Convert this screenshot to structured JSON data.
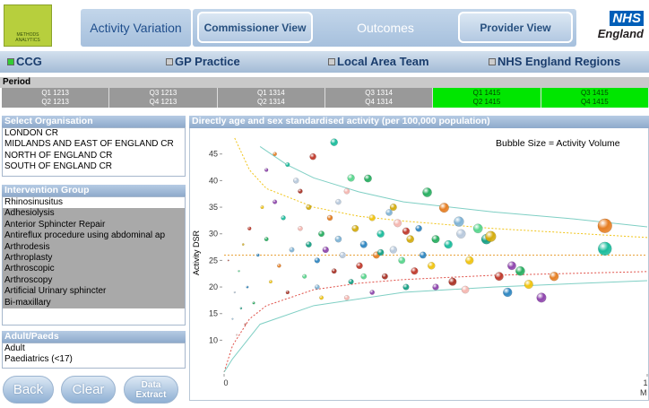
{
  "header": {
    "logo": "METHODS ANALYTICS",
    "tabs": [
      "Activity Variation",
      "Commissioner View",
      "Outcomes",
      "Provider View"
    ],
    "nhs_logo": [
      "NHS",
      "England"
    ]
  },
  "nav": {
    "items": [
      "CCG",
      "GP Practice",
      "Local Area Team",
      "NHS England Regions"
    ],
    "active": 0
  },
  "period": {
    "title": "Period",
    "cells": [
      [
        "Q1 1213",
        "Q2 1213"
      ],
      [
        "Q3 1213",
        "Q4 1213"
      ],
      [
        "Q1 1314",
        "Q2 1314"
      ],
      [
        "Q3 1314",
        "Q4 1314"
      ],
      [
        "Q1 1415",
        "Q2 1415"
      ],
      [
        "Q3 1415",
        "Q4 1415"
      ]
    ],
    "selected": [
      false,
      false,
      false,
      false,
      true,
      true
    ]
  },
  "organisation": {
    "title": "Select Organisation",
    "items": [
      "LONDON CR",
      "MIDLANDS AND EAST OF ENGLAND CR",
      "NORTH OF ENGLAND CR",
      "SOUTH OF ENGLAND CR"
    ]
  },
  "intervention": {
    "title": "Intervention Group",
    "items": [
      "Rhinosinusitus",
      "Adhesiolysis",
      "Anterior Sphincter Repair",
      "Antireflux procedure using abdominal ap",
      "Arthrodesis",
      "Arthroplasty",
      "Arthroscopic",
      "Arthroscopy",
      "Artificial Urinary sphincter",
      "Bi-maxillary"
    ],
    "selected_index": 0
  },
  "age": {
    "title": "Adult/Paeds",
    "items": [
      "Adult",
      "Paediatrics (<17)"
    ]
  },
  "buttons": [
    "Back",
    "Clear",
    "Data Extract"
  ],
  "chart_data": {
    "type": "scatter",
    "title": "Directly age and sex standardised activity (per 100,000 population)",
    "annotation": "Bubble Size = Activity Volume",
    "y_label": "Activity DSR",
    "x_unit": "M",
    "xlim": [
      0,
      1
    ],
    "xticks": [
      0,
      1
    ],
    "ylim": [
      4,
      49
    ],
    "yticks": [
      10,
      15,
      20,
      25,
      30,
      35,
      40,
      45
    ],
    "colors": [
      "#c0392b",
      "#2e86c1",
      "#27ae60",
      "#f1c40f",
      "#8e44ad",
      "#e67e22",
      "#1abc9c",
      "#a93226",
      "#7fb3d5",
      "#b8c9dc",
      "#f5b7b1",
      "#58d68d",
      "#16a085",
      "#d4ac0d"
    ],
    "x": [
      0.06,
      0.08,
      0.1,
      0.11,
      0.12,
      0.13,
      0.14,
      0.15,
      0.16,
      0.17,
      0.18,
      0.19,
      0.2,
      0.2,
      0.21,
      0.22,
      0.23,
      0.23,
      0.24,
      0.25,
      0.26,
      0.26,
      0.27,
      0.28,
      0.29,
      0.3,
      0.3,
      0.31,
      0.32,
      0.33,
      0.34,
      0.35,
      0.35,
      0.36,
      0.37,
      0.38,
      0.39,
      0.4,
      0.41,
      0.42,
      0.43,
      0.44,
      0.45,
      0.46,
      0.48,
      0.49,
      0.5,
      0.52,
      0.53,
      0.54,
      0.555,
      0.56,
      0.57,
      0.6,
      0.62,
      0.63,
      0.65,
      0.67,
      0.7,
      0.72,
      0.75,
      0.9,
      0.9,
      0.01,
      0.02,
      0.025,
      0.03,
      0.035,
      0.04,
      0.045,
      0.05,
      0.055,
      0.07,
      0.09,
      0.1,
      0.12,
      0.15,
      0.18,
      0.22,
      0.27,
      0.29,
      0.33,
      0.37,
      0.4,
      0.43,
      0.47,
      0.5,
      0.58,
      0.68,
      0.78
    ],
    "values": [
      31,
      26,
      29,
      21,
      36,
      24,
      33,
      19,
      27,
      40,
      31,
      22,
      28,
      35,
      44.5,
      25,
      30,
      18,
      27,
      33,
      47.2,
      23,
      29,
      26,
      38,
      40.5,
      21,
      31,
      24,
      28,
      40.4,
      33,
      19,
      26,
      30,
      22,
      34,
      27,
      32,
      25,
      20,
      29,
      23,
      31,
      37.8,
      24,
      20,
      34.9,
      28,
      21,
      32.3,
      30,
      19.5,
      31,
      29,
      29.5,
      22,
      19,
      23,
      20.5,
      18,
      31.5,
      27.2,
      25,
      14,
      19,
      11,
      23,
      16,
      28,
      13,
      20,
      17,
      35,
      42,
      45,
      43,
      38,
      20,
      36,
      18,
      22,
      26.5,
      35,
      30.5,
      26,
      29,
      25,
      24,
      22
    ],
    "sizes": [
      60,
      40,
      80,
      50,
      90,
      70,
      100,
      60,
      120,
      150,
      110,
      90,
      160,
      130,
      200,
      140,
      170,
      80,
      190,
      150,
      260,
      120,
      210,
      180,
      160,
      250,
      130,
      220,
      200,
      240,
      280,
      190,
      110,
      230,
      260,
      170,
      210,
      250,
      300,
      220,
      180,
      270,
      240,
      200,
      420,
      260,
      190,
      450,
      330,
      300,
      480,
      400,
      280,
      430,
      500,
      560,
      360,
      400,
      420,
      380,
      450,
      1000,
      900,
      10,
      12,
      15,
      12,
      18,
      20,
      22,
      15,
      25,
      30,
      50,
      60,
      70,
      90,
      100,
      110,
      150,
      120,
      160,
      200,
      230,
      250,
      220,
      300,
      320,
      350,
      400
    ],
    "lines": [
      {
        "color": "#e8a33a",
        "dash": true,
        "x": [
          0,
          1
        ],
        "values": [
          26,
          26
        ]
      },
      {
        "color": "#7fcfc4",
        "dash": false,
        "x": [
          0.085,
          0.148,
          0.212,
          0.318,
          0.424,
          0.636,
          0.826,
          1
        ],
        "values": [
          46.4,
          43,
          40.5,
          37.9,
          36,
          34.1,
          32.8,
          31.3
        ]
      },
      {
        "color": "#f0c419",
        "dash": true,
        "x": [
          0.025,
          0.06,
          0.1,
          0.212,
          0.318,
          0.424,
          0.636,
          1
        ],
        "values": [
          48,
          42,
          38.5,
          35,
          33.3,
          32.4,
          31,
          29.3
        ]
      },
      {
        "color": "#e0524a",
        "dash": true,
        "x": [
          0,
          0.02,
          0.06,
          0.1,
          0.212,
          0.318,
          0.424,
          0.636,
          1
        ],
        "values": [
          4,
          9,
          14,
          16.5,
          19.5,
          20.7,
          21.4,
          22.2,
          22.9
        ]
      },
      {
        "color": "#7fcfc4",
        "dash": false,
        "x": [
          0,
          0.02,
          0.085,
          0.212,
          0.424,
          0.636,
          1
        ],
        "values": [
          4,
          6.5,
          13,
          16.5,
          19,
          20,
          21.2
        ]
      }
    ]
  }
}
